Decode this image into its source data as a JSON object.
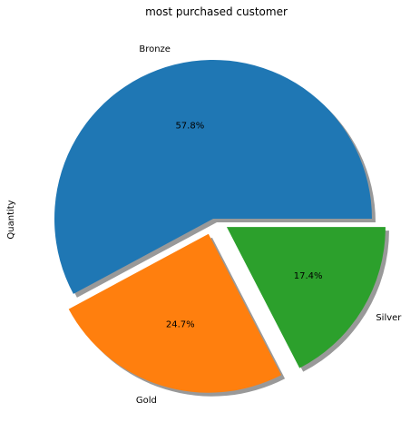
{
  "chart_data": {
    "type": "pie",
    "title": "most purchased customer",
    "ylabel": "Quantity",
    "categories": [
      "Bronze",
      "Gold",
      "Silver"
    ],
    "values": [
      57.8,
      24.7,
      17.4
    ],
    "percent_labels": [
      "57.8%",
      "24.7%",
      "17.4%"
    ],
    "colors": [
      "#1f77b4",
      "#ff7f0e",
      "#2ca02c"
    ],
    "explode": [
      0,
      0.1,
      0.1
    ],
    "shadow": true,
    "start_angle": 0,
    "legend": false
  }
}
